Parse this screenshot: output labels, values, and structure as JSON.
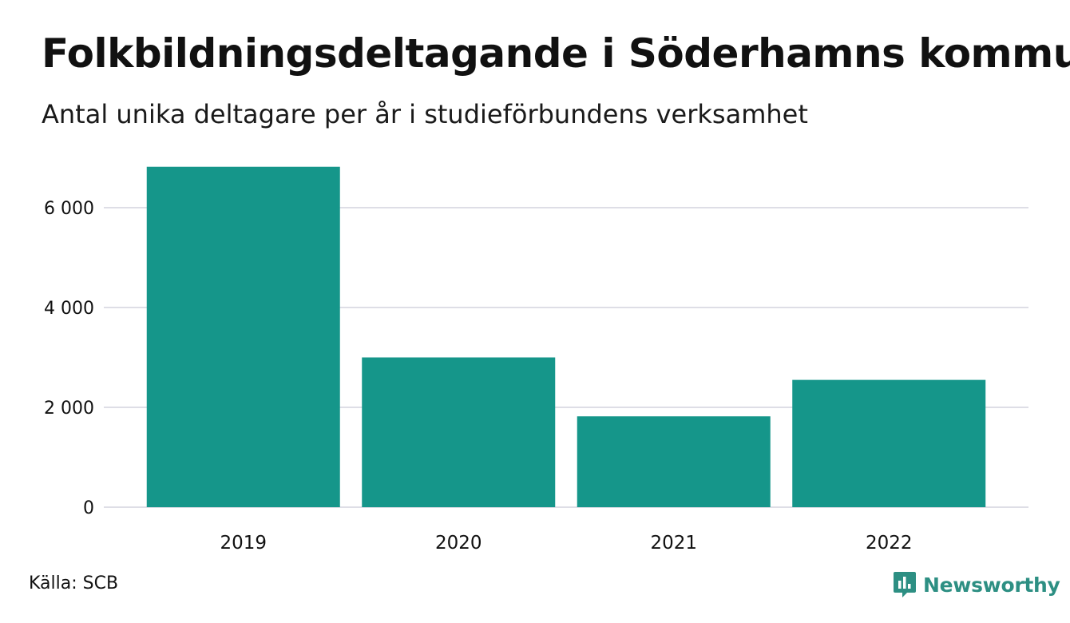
{
  "chart_data": {
    "type": "bar",
    "title": "Folkbildningsdeltagande i Söderhamns kommun",
    "subtitle": "Antal unika deltagare per år i studieförbundens verksamhet",
    "categories": [
      "2019",
      "2020",
      "2021",
      "2022"
    ],
    "values": [
      6820,
      3000,
      1820,
      2550
    ],
    "ylim": [
      0,
      7000
    ],
    "yticks": [
      0,
      2000,
      4000,
      6000
    ],
    "ytick_labels": [
      "0",
      "2 000",
      "4 000",
      "6 000"
    ],
    "grid": true,
    "legend": "none",
    "bar_color": "#15968a",
    "grid_color": "#dedee6"
  },
  "source": "Källa: SCB",
  "logo": {
    "text": "Newsworthy",
    "icon": "newsworthy-logo-icon",
    "color": "#2d8f83"
  }
}
